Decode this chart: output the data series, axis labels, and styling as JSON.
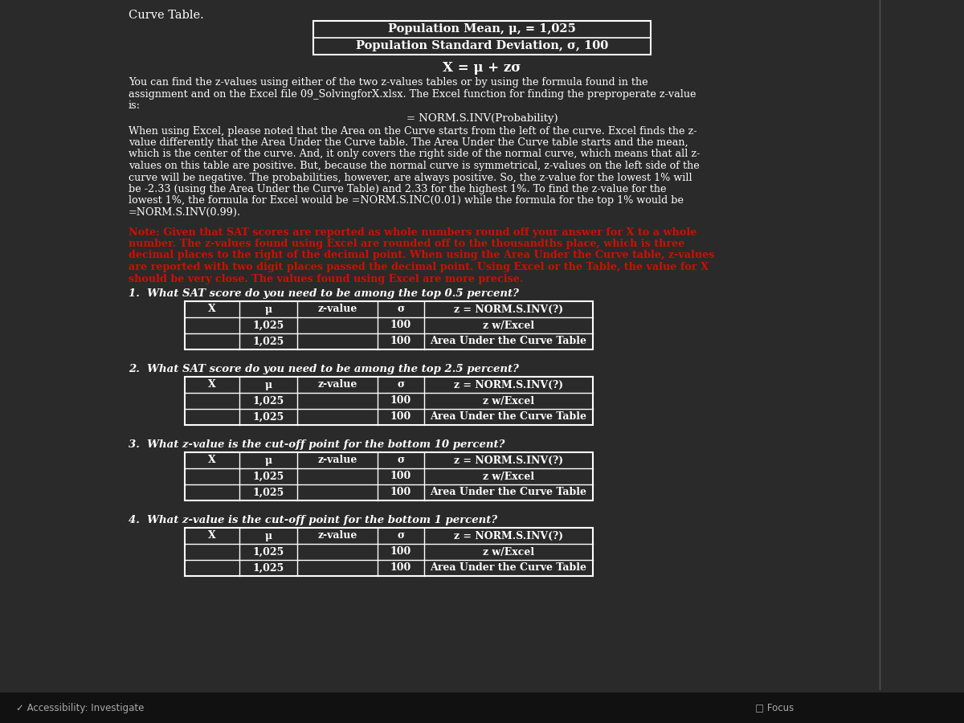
{
  "bg_color": "#2a2a2a",
  "content_bg": "#2d2d2d",
  "text_color": "#ffffff",
  "red_color": "#cc1100",
  "title": "Curve Table.",
  "box_line1": "Population Mean, μ, = 1,025",
  "box_line2": "Population Standard Deviation, σ, 100",
  "formula": "X = μ + zσ",
  "para1_line1": "You can find the z-values using either of the two z-values tables or by using the formula found in the",
  "para1_line2": "assignment and on the Excel file 09_SolvingforX.xlsx. The Excel function for finding the preproperate z-value",
  "para1_line3": "is:",
  "formula2": "= NORM.S.INV(Probability)",
  "para2_lines": [
    "When using Excel, please noted that the Area on the Curve starts from the left of the curve. Excel finds the z-",
    "value differently that the Area Under the Curve table. The Area Under the Curve table starts and the mean,",
    "which is the center of the curve. And, it only covers the right side of the normal curve, which means that all z-",
    "values on this table are positive. But, because the normal curve is symmetrical, z-values on the left side of the",
    "curve will be negative. The probabilities, however, are always positive. So, the z-value for the lowest 1% will",
    "be -2.33 (using the Area Under the Curve Table) and 2.33 for the highest 1%. To find the z-value for the",
    "lowest 1%, the formula for Excel would be =NORM.S.INC(0.01) while the formula for the top 1% would be",
    "=NORM.S.INV(0.99)."
  ],
  "note_lines": [
    "Note: Given that SAT scores are reported as whole numbers round off your answer for X to a whole",
    "number. The z-values found using Excel are rounded off to the thousandths place, which is three",
    "decimal places to the right of the decimal point. When using the Area Under the Curve table, z-values",
    "are reported with two digit places passed the decimal point. Using Excel or the Table, the value for X",
    "should be very close. The values found using Excel are more precise."
  ],
  "questions": [
    "1.  What SAT score do you need to be among the top 0.5 percent?",
    "2.  What SAT score do you need to be among the top 2.5 percent?",
    "3.  What z-value is the cut-off point for the bottom 10 percent?",
    "4.  What z-value is the cut-off point for the bottom 1 percent?"
  ],
  "table_headers": [
    "X",
    "μ",
    "z-value",
    "σ",
    "z = NORM.S.INV(?)"
  ],
  "table_row1": [
    "",
    "1,025",
    "",
    "100",
    "z w/Excel"
  ],
  "table_row2": [
    "",
    "1,025",
    "",
    "100",
    "Area Under the Curve Table"
  ],
  "footer_left": "✓ Accessibility: Investigate",
  "footer_icons": "□ Focus"
}
